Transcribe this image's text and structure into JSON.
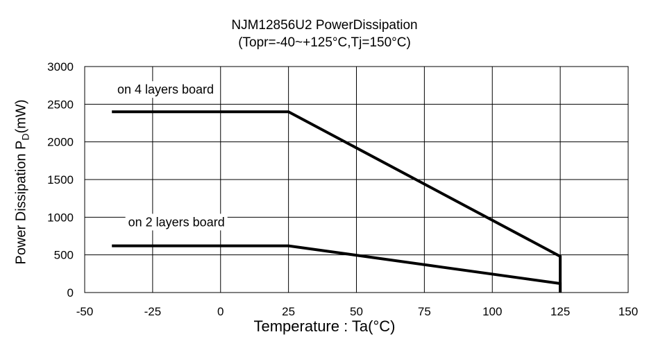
{
  "chart_data": {
    "type": "line",
    "title": "NJM12856U2 PowerDissipation",
    "subtitle": "(Topr=-40~+125°C,Tj=150°C)",
    "xlabel": "Temperature : Ta(°C)",
    "ylabel": {
      "main": "Power Dissipation P",
      "sub": "D",
      "unit": "(mW)"
    },
    "xlim": [
      -50,
      150
    ],
    "ylim": [
      0,
      3000
    ],
    "x_ticks": [
      -50,
      -25,
      0,
      25,
      50,
      75,
      100,
      125,
      150
    ],
    "y_ticks": [
      0,
      500,
      1000,
      1500,
      2000,
      2500,
      3000
    ],
    "grid": true,
    "series": [
      {
        "name": "on 4 layers board",
        "x": [
          -40,
          25,
          125,
          125
        ],
        "y": [
          2400,
          2400,
          480,
          0
        ]
      },
      {
        "name": "on 2 layers board",
        "x": [
          -40,
          25,
          125,
          125
        ],
        "y": [
          620,
          620,
          120,
          0
        ]
      }
    ],
    "annotations": [
      {
        "text": "on 4 layers board",
        "x": -38,
        "y": 2640
      },
      {
        "text": "on 2 layers board",
        "x": -34,
        "y": 880
      }
    ]
  }
}
